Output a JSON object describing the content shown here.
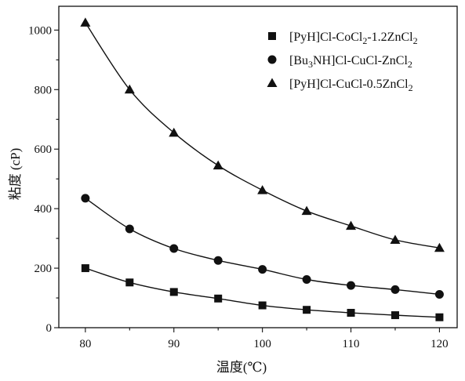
{
  "chart_data": {
    "type": "line",
    "title": "",
    "xlabel": "温度(℃)",
    "ylabel": "粘度 (cP)",
    "xlim": [
      77,
      122
    ],
    "ylim": [
      0,
      1080
    ],
    "xticks": [
      80,
      90,
      100,
      110,
      120
    ],
    "yticks": [
      0,
      200,
      400,
      600,
      800,
      1000
    ],
    "grid": false,
    "legend_position": "top-right",
    "x": [
      80,
      85,
      90,
      95,
      100,
      105,
      110,
      115,
      120
    ],
    "series": [
      {
        "name": "[PyH]Cl-CoCl2-1.2ZnCl2",
        "name_parts": [
          [
            "[PyH]Cl-CoCl",
            "n"
          ],
          [
            "2",
            "sub"
          ],
          [
            "-1.2ZnCl",
            "n"
          ],
          [
            "2",
            "sub"
          ]
        ],
        "marker": "square",
        "values": [
          200,
          152,
          120,
          98,
          75,
          60,
          50,
          42,
          35
        ]
      },
      {
        "name": "[Bu3NH]Cl-CuCl-ZnCl2",
        "name_parts": [
          [
            "[Bu",
            "n"
          ],
          [
            "3",
            "sub"
          ],
          [
            "NH]Cl-CuCl-ZnCl",
            "n"
          ],
          [
            "2",
            "sub"
          ]
        ],
        "marker": "circle",
        "values": [
          435,
          332,
          266,
          226,
          196,
          162,
          142,
          128,
          112
        ]
      },
      {
        "name": "[PyH]Cl-CuCl-0.5ZnCl2",
        "name_parts": [
          [
            "[PyH]Cl-CuCl-0.5ZnCl",
            "n"
          ],
          [
            "2",
            "sub"
          ]
        ],
        "marker": "triangle",
        "values": [
          1025,
          800,
          655,
          545,
          462,
          392,
          342,
          295,
          268
        ]
      }
    ]
  }
}
